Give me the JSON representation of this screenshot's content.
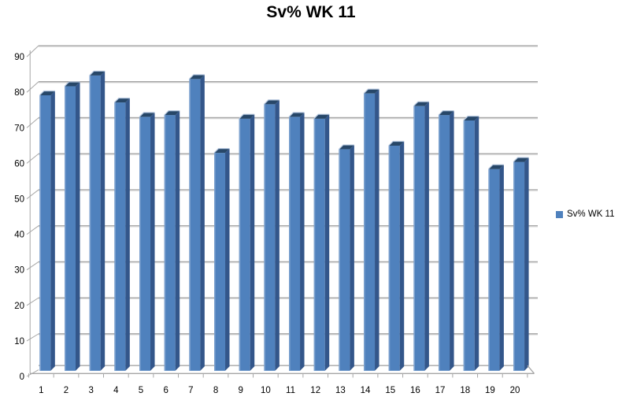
{
  "title": "Sv% WK 11",
  "legend": {
    "label": "Sv% WK 11",
    "marker_color": "#4F81BD"
  },
  "chart_data": {
    "type": "bar",
    "style": "3d-column",
    "title": "Sv% WK 11",
    "categories": [
      "1",
      "2",
      "3",
      "4",
      "5",
      "6",
      "7",
      "8",
      "9",
      "10",
      "11",
      "12",
      "13",
      "14",
      "15",
      "16",
      "17",
      "18",
      "19",
      "20"
    ],
    "series": [
      {
        "name": "Sv% WK 11",
        "color": "#4F81BD",
        "values": [
          76.5,
          79,
          82,
          74.5,
          70.5,
          71,
          81,
          60.5,
          70,
          74,
          70.5,
          70,
          61.5,
          77,
          62.5,
          73.5,
          71,
          69.5,
          56,
          58
        ]
      }
    ],
    "xlabel": "",
    "ylabel": "",
    "ylim": [
      0,
      90
    ],
    "yticks": [
      0,
      10,
      20,
      30,
      40,
      50,
      60,
      70,
      80,
      90
    ],
    "grid": true,
    "legend_position": "right",
    "colors": {
      "background": "#FFFFFF",
      "text": "#000000",
      "grid": "#A6A6A6",
      "grid_shadow": "#E0E0E0",
      "bar_face": "#4F81BD",
      "bar_side": "#33568A",
      "bar_top": "#274768",
      "bar_left_highlight": "#7CA1CF",
      "bar_top_highlight": "#B5C7DF"
    }
  }
}
